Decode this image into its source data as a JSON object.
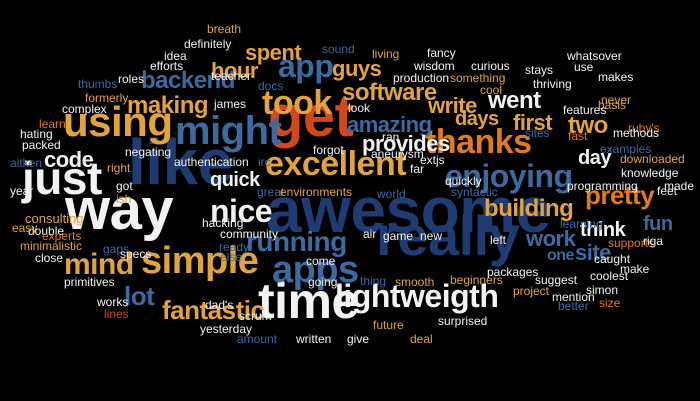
{
  "palette": {
    "background": "#000000",
    "white": "#f2f2f2",
    "navy": "#1f3b73",
    "blue": "#3a6aa0",
    "lightblue": "#8fb3d9",
    "orange": "#e07a1a",
    "gold": "#e3a33b",
    "red": "#d2481b",
    "grey": "#8a8a8a"
  },
  "words": [
    {
      "text": "awesome",
      "color": "navy"
    },
    {
      "text": "really",
      "color": "navy"
    },
    {
      "text": "like",
      "color": "navy"
    },
    {
      "text": "way",
      "color": "white"
    },
    {
      "text": "get",
      "color": "red"
    },
    {
      "text": "time",
      "color": "white"
    },
    {
      "text": "just",
      "color": "white"
    },
    {
      "text": "using",
      "color": "gold"
    },
    {
      "text": "might",
      "color": "blue"
    },
    {
      "text": "simple",
      "color": "gold"
    },
    {
      "text": "excellent",
      "color": "gold"
    },
    {
      "text": "took",
      "color": "gold"
    },
    {
      "text": "lightweigth",
      "color": "white"
    },
    {
      "text": "thanks",
      "color": "orange"
    },
    {
      "text": "apps",
      "color": "blue"
    },
    {
      "text": "enjoying",
      "color": "blue"
    },
    {
      "text": "app",
      "color": "blue"
    },
    {
      "text": "nice",
      "color": "white"
    },
    {
      "text": "mind",
      "color": "gold"
    },
    {
      "text": "running",
      "color": "blue"
    },
    {
      "text": "fantastic",
      "color": "gold"
    },
    {
      "text": "building",
      "color": "gold"
    },
    {
      "text": "pretty",
      "color": "orange"
    },
    {
      "text": "write",
      "color": "gold"
    },
    {
      "text": "went",
      "color": "white"
    },
    {
      "text": "software",
      "color": "gold"
    },
    {
      "text": "making",
      "color": "gold"
    },
    {
      "text": "backend",
      "color": "blue"
    },
    {
      "text": "amazing",
      "color": "blue"
    },
    {
      "text": "provides",
      "color": "white"
    },
    {
      "text": "days",
      "color": "gold"
    },
    {
      "text": "first",
      "color": "gold"
    },
    {
      "text": "two",
      "color": "gold"
    },
    {
      "text": "code",
      "color": "white"
    },
    {
      "text": "quick",
      "color": "white"
    },
    {
      "text": "guys",
      "color": "gold"
    },
    {
      "text": "spent",
      "color": "gold"
    },
    {
      "text": "hour",
      "color": "gold"
    },
    {
      "text": "work",
      "color": "blue"
    },
    {
      "text": "one",
      "color": "blue"
    },
    {
      "text": "site",
      "color": "blue"
    },
    {
      "text": "fun",
      "color": "blue"
    },
    {
      "text": "think",
      "color": "white"
    },
    {
      "text": "day",
      "color": "white"
    },
    {
      "text": "lot",
      "color": "blue"
    },
    {
      "text": "breath",
      "color": "gold"
    },
    {
      "text": "definitely",
      "color": "white"
    },
    {
      "text": "idea",
      "color": "white"
    },
    {
      "text": "efforts",
      "color": "white"
    },
    {
      "text": "roles",
      "color": "white"
    },
    {
      "text": "thumbs",
      "color": "blue"
    },
    {
      "text": "formerly",
      "color": "gold"
    },
    {
      "text": "complex",
      "color": "white"
    },
    {
      "text": "learn",
      "color": "orange"
    },
    {
      "text": "hating",
      "color": "white"
    },
    {
      "text": "packed",
      "color": "white"
    },
    {
      "text": "aitken",
      "color": "blue"
    },
    {
      "text": "year",
      "color": "white"
    },
    {
      "text": "consulting",
      "color": "gold"
    },
    {
      "text": "double",
      "color": "white"
    },
    {
      "text": "easy",
      "color": "gold"
    },
    {
      "text": "experts",
      "color": "orange"
    },
    {
      "text": "minimalistic",
      "color": "gold"
    },
    {
      "text": "close",
      "color": "white"
    },
    {
      "text": "gaps",
      "color": "blue"
    },
    {
      "text": "primitives",
      "color": "white"
    },
    {
      "text": "works",
      "color": "white"
    },
    {
      "text": "lines",
      "color": "red"
    },
    {
      "text": "specs",
      "color": "white"
    },
    {
      "text": "right",
      "color": "gold"
    },
    {
      "text": "got",
      "color": "white"
    },
    {
      "text": "ish",
      "color": "gold"
    },
    {
      "text": "negating",
      "color": "white"
    },
    {
      "text": "james",
      "color": "white"
    },
    {
      "text": "teacher",
      "color": "white"
    },
    {
      "text": "docs",
      "color": "blue"
    },
    {
      "text": "sound",
      "color": "blue"
    },
    {
      "text": "living",
      "color": "gold"
    },
    {
      "text": "fancy",
      "color": "white"
    },
    {
      "text": "wisdom",
      "color": "white"
    },
    {
      "text": "curious",
      "color": "white"
    },
    {
      "text": "production",
      "color": "white"
    },
    {
      "text": "something",
      "color": "gold"
    },
    {
      "text": "stays",
      "color": "white"
    },
    {
      "text": "cool",
      "color": "gold"
    },
    {
      "text": "thriving",
      "color": "white"
    },
    {
      "text": "makes",
      "color": "white"
    },
    {
      "text": "whatsover",
      "color": "white"
    },
    {
      "text": "use",
      "color": "white"
    },
    {
      "text": "basis",
      "color": "gold"
    },
    {
      "text": "never",
      "color": "gold"
    },
    {
      "text": "features",
      "color": "white"
    },
    {
      "text": "look",
      "color": "white"
    },
    {
      "text": "ran",
      "color": "white"
    },
    {
      "text": "sites",
      "color": "blue"
    },
    {
      "text": "fast",
      "color": "orange"
    },
    {
      "text": "ruby's",
      "color": "orange"
    },
    {
      "text": "methods",
      "color": "white"
    },
    {
      "text": "examples",
      "color": "blue"
    },
    {
      "text": "downloaded",
      "color": "gold"
    },
    {
      "text": "knowledge",
      "color": "white"
    },
    {
      "text": "feet",
      "color": "white"
    },
    {
      "text": "made",
      "color": "white"
    },
    {
      "text": "far",
      "color": "white"
    },
    {
      "text": "mention",
      "color": "white"
    },
    {
      "text": "programming",
      "color": "white"
    },
    {
      "text": "aneurysm",
      "color": "white"
    },
    {
      "text": "extjs",
      "color": "white"
    },
    {
      "text": "quickly",
      "color": "white"
    },
    {
      "text": "forgot",
      "color": "white"
    },
    {
      "text": "syntactic",
      "color": "blue"
    },
    {
      "text": "hacking",
      "color": "white"
    },
    {
      "text": "irc",
      "color": "blue"
    },
    {
      "text": "authentication",
      "color": "white"
    },
    {
      "text": "great",
      "color": "blue"
    },
    {
      "text": "environments",
      "color": "gold"
    },
    {
      "text": "world",
      "color": "blue"
    },
    {
      "text": "community",
      "color": "white"
    },
    {
      "text": "ready",
      "color": "blue"
    },
    {
      "text": "else",
      "color": "blue"
    },
    {
      "text": "air",
      "color": "white"
    },
    {
      "text": "game",
      "color": "white"
    },
    {
      "text": "new",
      "color": "white"
    },
    {
      "text": "left",
      "color": "white"
    },
    {
      "text": "come",
      "color": "white"
    },
    {
      "text": "thing",
      "color": "blue"
    },
    {
      "text": "smooth",
      "color": "gold"
    },
    {
      "text": "beginners",
      "color": "gold"
    },
    {
      "text": "packages",
      "color": "white"
    },
    {
      "text": "suggest",
      "color": "white"
    },
    {
      "text": "learning",
      "color": "blue"
    },
    {
      "text": "supports",
      "color": "orange"
    },
    {
      "text": "caught",
      "color": "white"
    },
    {
      "text": "riga",
      "color": "white"
    },
    {
      "text": "coolest",
      "color": "white"
    },
    {
      "text": "make",
      "color": "white"
    },
    {
      "text": "simon",
      "color": "white"
    },
    {
      "text": "size",
      "color": "orange"
    },
    {
      "text": "better",
      "color": "blue"
    },
    {
      "text": "project",
      "color": "gold"
    },
    {
      "text": "going",
      "color": "white"
    },
    {
      "text": "future",
      "color": "gold"
    },
    {
      "text": "deal",
      "color": "gold"
    },
    {
      "text": "surprised",
      "color": "white"
    },
    {
      "text": "give",
      "color": "white"
    },
    {
      "text": "written",
      "color": "white"
    },
    {
      "text": "amount",
      "color": "blue"
    },
    {
      "text": "yesterday",
      "color": "white"
    },
    {
      "text": "dad's",
      "color": "white"
    },
    {
      "text": "scrum",
      "color": "white"
    }
  ]
}
